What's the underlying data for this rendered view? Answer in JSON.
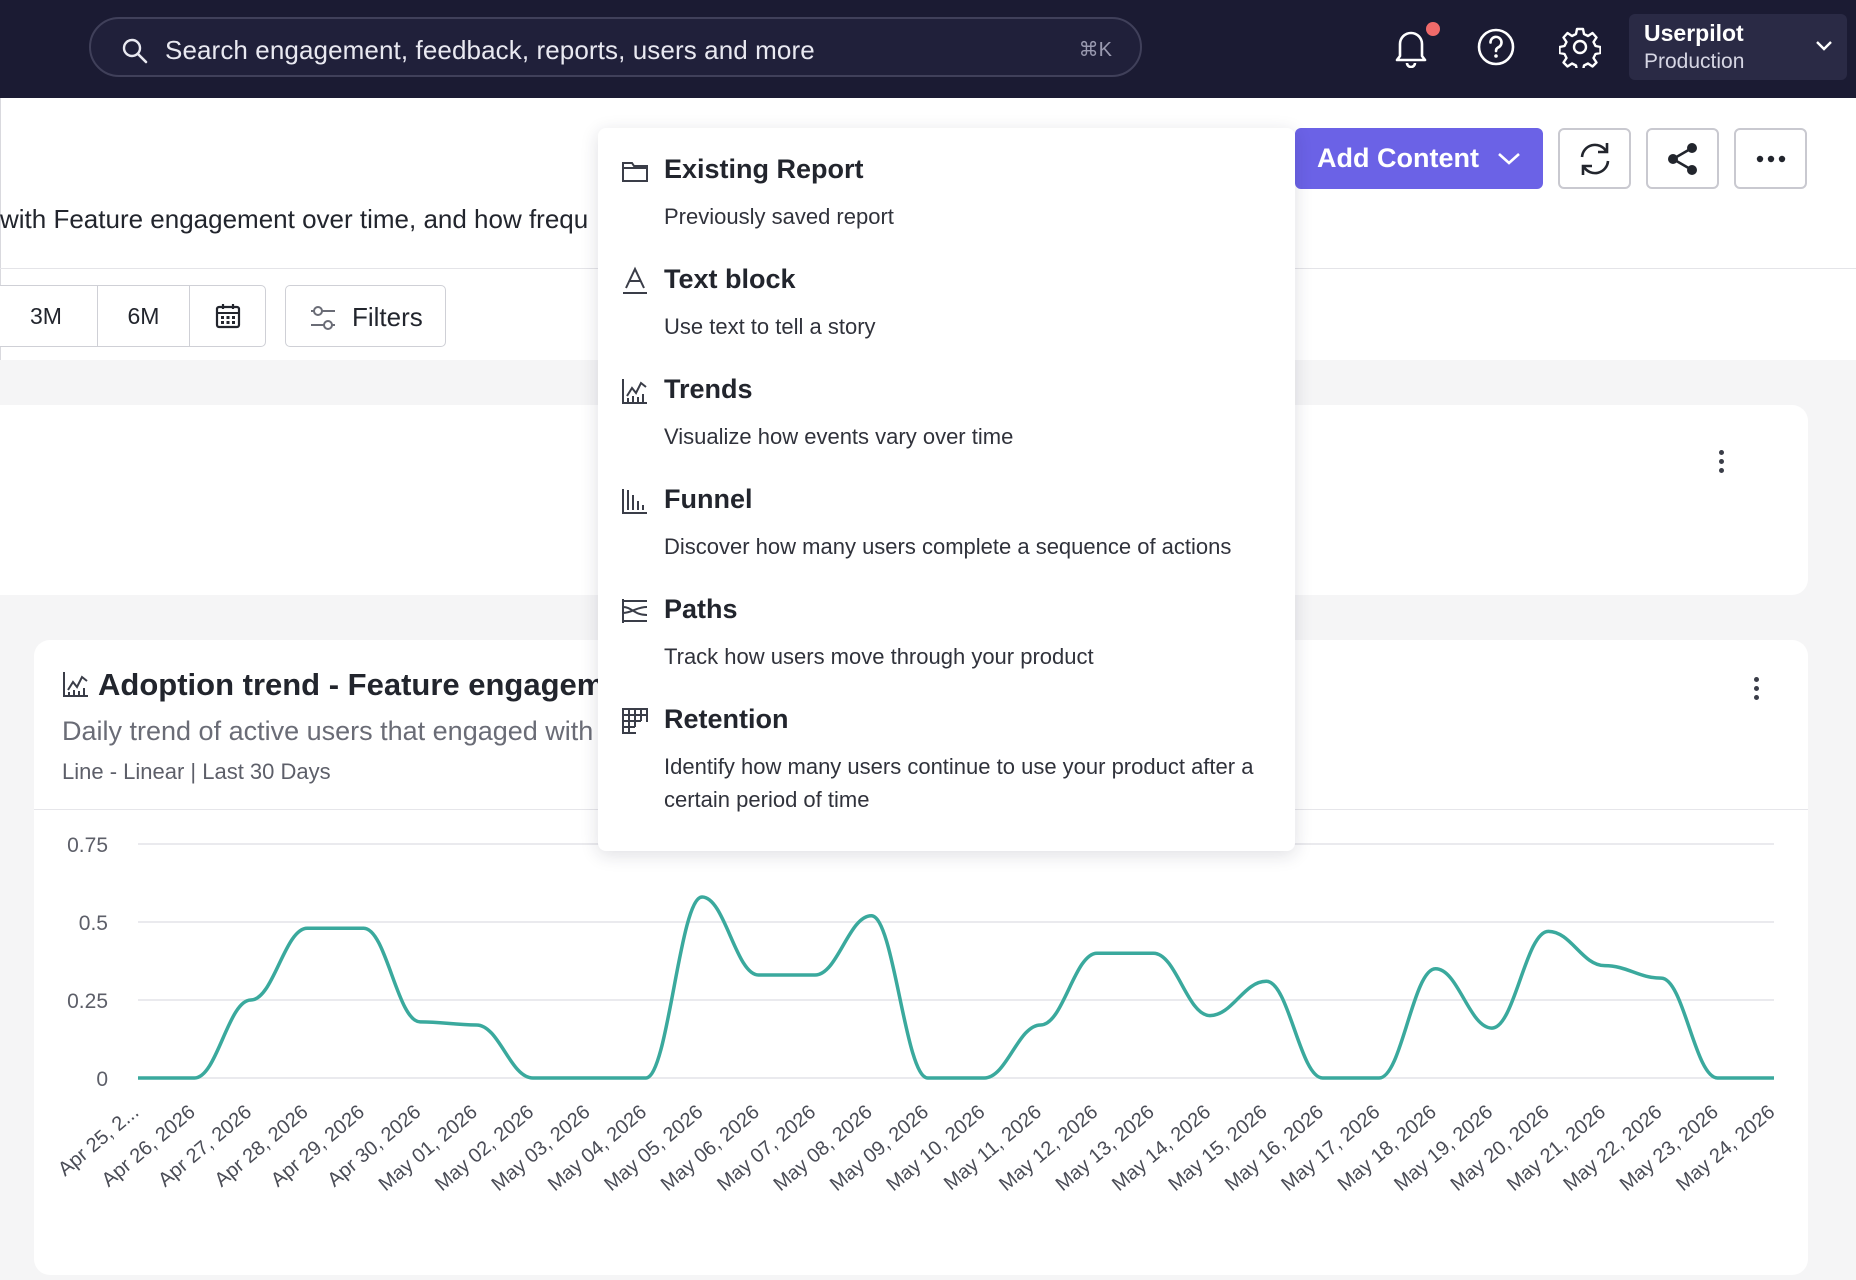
{
  "topbar": {
    "search_placeholder": "Search engagement, feedback, reports, users and more",
    "search_shortcut": "⌘K",
    "icons": [
      "bell-icon",
      "help-icon",
      "gear-icon"
    ],
    "account_name": "Userpilot",
    "account_env": "Production"
  },
  "page": {
    "description": "with Feature engagement over time, and how frequ",
    "time_ranges": [
      "3M",
      "6M"
    ],
    "filters_label": "Filters",
    "add_content_label": "Add Content",
    "accent_color": "#6b62e6"
  },
  "menu": {
    "items": [
      {
        "title": "Existing Report",
        "desc": "Previously saved report",
        "icon": "folder-icon"
      },
      {
        "title": "Text block",
        "desc": "Use text to tell a story",
        "icon": "text-icon"
      },
      {
        "title": "Trends",
        "desc": "Visualize how events vary over time",
        "icon": "trends-icon"
      },
      {
        "title": "Funnel",
        "desc": "Discover how many users complete a sequence of actions",
        "icon": "funnel-icon"
      },
      {
        "title": "Paths",
        "desc": "Track how users move through your product",
        "icon": "paths-icon"
      },
      {
        "title": "Retention",
        "desc": "Identify how many users continue to use your product after a certain period of time",
        "icon": "retention-icon"
      }
    ]
  },
  "card": {
    "title": "Adoption trend - Feature engageme",
    "subtitle": "Daily trend of active users that engaged with",
    "meta": "Line - Linear | Last 30 Days"
  },
  "chart_data": {
    "type": "line",
    "title": "",
    "xlabel": "",
    "ylabel": "",
    "ylim": [
      0,
      0.75
    ],
    "yticks": [
      "0.75",
      "0.5",
      "0.25",
      "0"
    ],
    "grid": true,
    "color": "#3aa99d",
    "categories": [
      "Apr 25, 2...",
      "Apr 26, 2026",
      "Apr 27, 2026",
      "Apr 28, 2026",
      "Apr 29, 2026",
      "Apr 30, 2026",
      "May 01, 2026",
      "May 02, 2026",
      "May 03, 2026",
      "May 04, 2026",
      "May 05, 2026",
      "May 06, 2026",
      "May 07, 2026",
      "May 08, 2026",
      "May 09, 2026",
      "May 10, 2026",
      "May 11, 2026",
      "May 12, 2026",
      "May 13, 2026",
      "May 14, 2026",
      "May 15, 2026",
      "May 16, 2026",
      "May 17, 2026",
      "May 18, 2026",
      "May 19, 2026",
      "May 20, 2026",
      "May 21, 2026",
      "May 22, 2026",
      "May 23, 2026",
      "May 24, 2026"
    ],
    "values": [
      0,
      0,
      0.25,
      0.48,
      0.48,
      0.18,
      0.17,
      0,
      0,
      0,
      0.58,
      0.33,
      0.33,
      0.52,
      0,
      0,
      0.17,
      0.4,
      0.4,
      0.2,
      0.31,
      0,
      0,
      0.35,
      0.16,
      0.47,
      0.36,
      0.32,
      0,
      0
    ]
  }
}
